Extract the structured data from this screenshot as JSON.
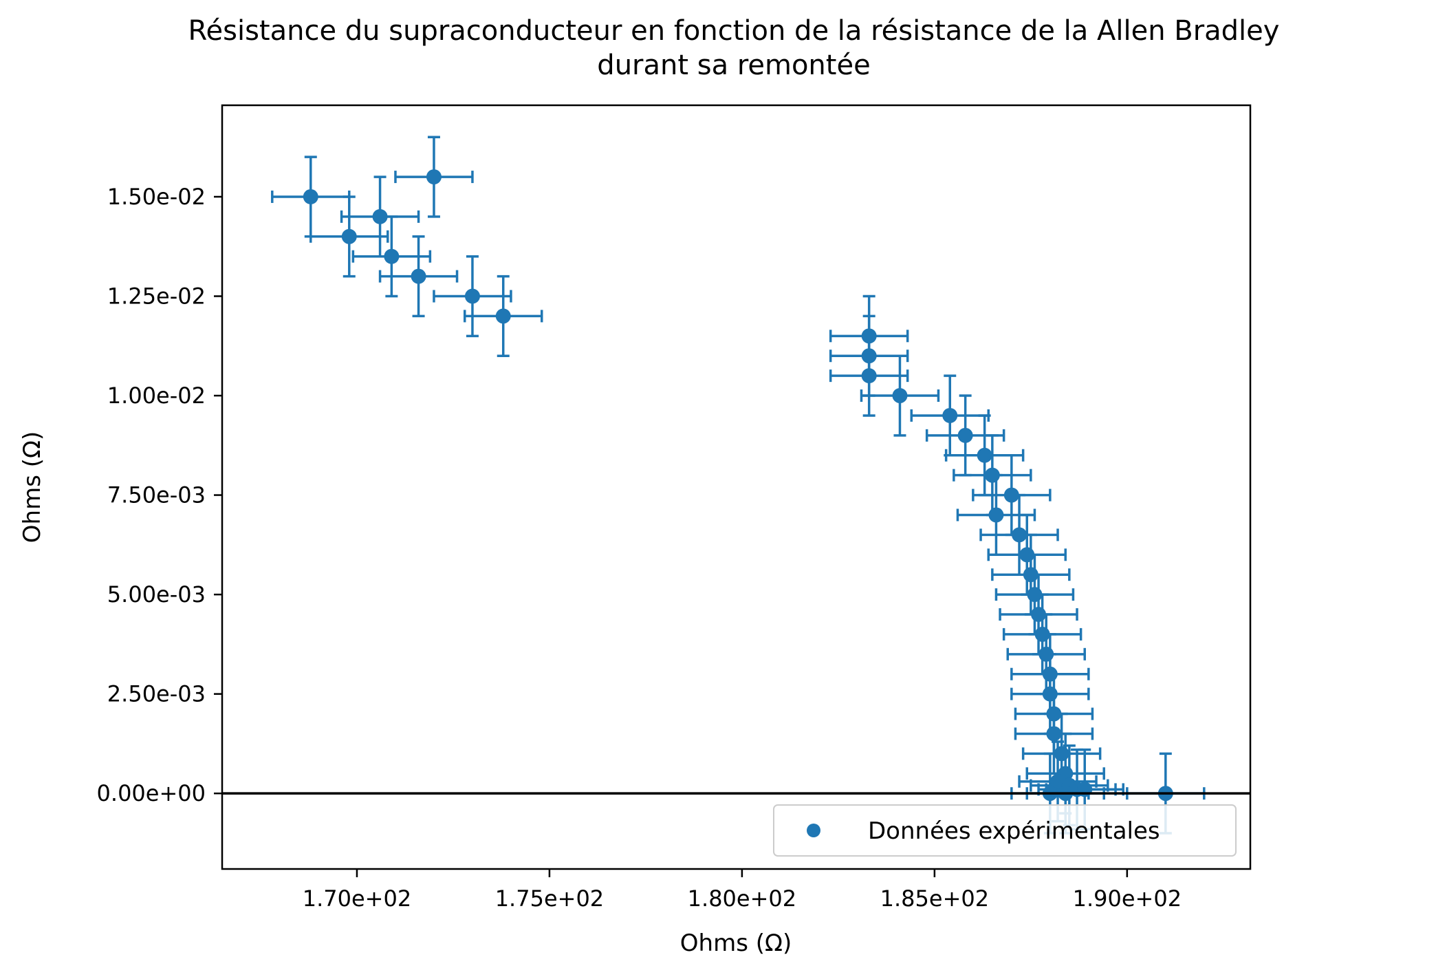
{
  "chart_data": {
    "type": "scatter",
    "title_lines": [
      "Résistance du supraconducteur en fonction de la résistance de la Allen Bradley",
      "durant sa remontée"
    ],
    "xlabel": "Ohms (Ω)",
    "ylabel": "Ohms (Ω)",
    "xlim": [
      166.5,
      193.2
    ],
    "ylim": [
      -0.0019,
      0.0173
    ],
    "x_ticks": [
      {
        "value": 170,
        "label": "1.70e+02"
      },
      {
        "value": 175,
        "label": "1.75e+02"
      },
      {
        "value": 180,
        "label": "1.80e+02"
      },
      {
        "value": 185,
        "label": "1.85e+02"
      },
      {
        "value": 190,
        "label": "1.90e+02"
      }
    ],
    "y_ticks": [
      {
        "value": 0.0,
        "label": "0.00e+00"
      },
      {
        "value": 0.0025,
        "label": "2.50e-03"
      },
      {
        "value": 0.005,
        "label": "5.00e-03"
      },
      {
        "value": 0.0075,
        "label": "7.50e-03"
      },
      {
        "value": 0.01,
        "label": "1.00e-02"
      },
      {
        "value": 0.0125,
        "label": "1.25e-02"
      },
      {
        "value": 0.015,
        "label": "1.50e-02"
      }
    ],
    "grid": false,
    "reference_line_y": 0.0,
    "legend": {
      "position": "lower right",
      "entries": [
        "Données expérimentales"
      ]
    },
    "colors": {
      "series": "#1f77b4",
      "reference_line": "#000000"
    },
    "series": [
      {
        "name": "Données expérimentales",
        "x_error": 1.0,
        "y_error": 0.001,
        "points": [
          [
            168.8,
            0.015
          ],
          [
            172.0,
            0.0155
          ],
          [
            170.6,
            0.0145
          ],
          [
            169.8,
            0.014
          ],
          [
            170.9,
            0.0135
          ],
          [
            171.6,
            0.013
          ],
          [
            173.0,
            0.0125
          ],
          [
            173.8,
            0.012
          ],
          [
            183.3,
            0.0115
          ],
          [
            183.3,
            0.011
          ],
          [
            183.3,
            0.0105
          ],
          [
            184.1,
            0.01
          ],
          [
            185.4,
            0.0095
          ],
          [
            185.8,
            0.009
          ],
          [
            186.3,
            0.0085
          ],
          [
            186.5,
            0.008
          ],
          [
            187.0,
            0.0075
          ],
          [
            186.6,
            0.007
          ],
          [
            187.2,
            0.0065
          ],
          [
            187.4,
            0.006
          ],
          [
            187.5,
            0.0055
          ],
          [
            187.6,
            0.005
          ],
          [
            187.7,
            0.0045
          ],
          [
            187.8,
            0.004
          ],
          [
            187.9,
            0.0035
          ],
          [
            188.0,
            0.003
          ],
          [
            188.0,
            0.0025
          ],
          [
            188.1,
            0.002
          ],
          [
            188.1,
            0.0015
          ],
          [
            188.3,
            0.001
          ],
          [
            188.4,
            0.0005
          ],
          [
            188.2,
            0.0003
          ],
          [
            188.5,
            0.0002
          ],
          [
            188.7,
            0.0001
          ],
          [
            188.9,
            0.0001
          ],
          [
            188.0,
            0.0
          ],
          [
            188.4,
            0.0
          ],
          [
            191.0,
            0.0
          ]
        ]
      }
    ]
  }
}
